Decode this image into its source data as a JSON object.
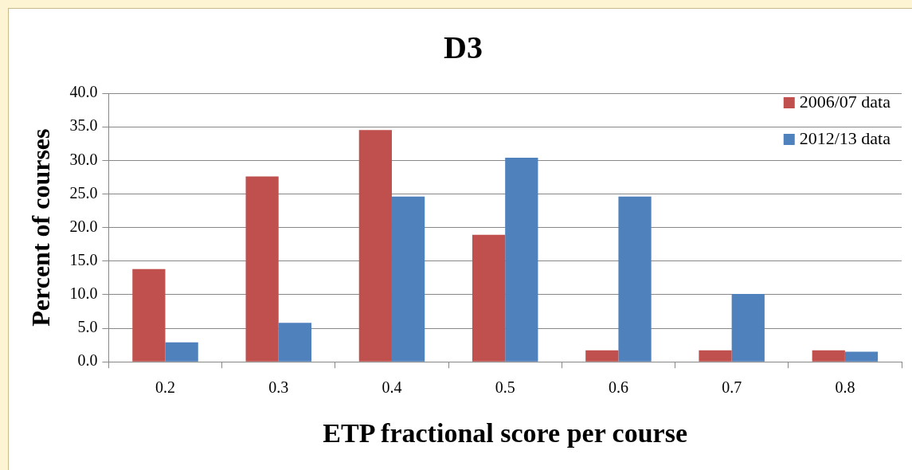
{
  "chart_data": {
    "type": "bar",
    "title": "D3",
    "xlabel": "ETP fractional score per course",
    "ylabel": "Percent of courses",
    "categories": [
      "0.2",
      "0.3",
      "0.4",
      "0.5",
      "0.6",
      "0.7",
      "0.8"
    ],
    "series": [
      {
        "name": "2006/07 data",
        "color": "#c0504d",
        "values": [
          13.8,
          27.6,
          34.5,
          18.9,
          1.7,
          1.7,
          1.7
        ]
      },
      {
        "name": "2012/13 data",
        "color": "#4f81bd",
        "values": [
          2.9,
          5.8,
          24.6,
          30.4,
          24.6,
          10.1,
          1.5
        ]
      }
    ],
    "ylim": [
      0,
      40
    ],
    "yticks": [
      {
        "value": 0,
        "label": "0.0"
      },
      {
        "value": 5,
        "label": "5.0"
      },
      {
        "value": 10,
        "label": "10.0"
      },
      {
        "value": 15,
        "label": "15.0"
      },
      {
        "value": 20,
        "label": "20.0"
      },
      {
        "value": 25,
        "label": "25.0"
      },
      {
        "value": 30,
        "label": "30.0"
      },
      {
        "value": 35,
        "label": "35.0"
      },
      {
        "value": 40,
        "label": "40.0"
      }
    ],
    "grid": "y",
    "legend": "top right"
  }
}
